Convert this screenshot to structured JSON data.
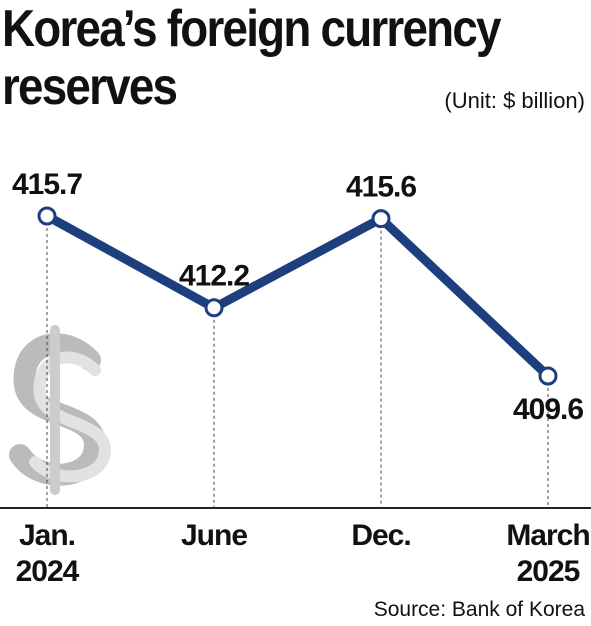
{
  "chart_data": {
    "type": "line",
    "title": "Korea’s foreign currency reserves",
    "subtitle": "(Unit: $ billion)",
    "source": "Source: Bank of Korea",
    "categories": [
      "Jan. 2024",
      "June",
      "Dec.",
      "March 2025"
    ],
    "series": [
      {
        "name": "Reserves",
        "color": "#1d3f7e",
        "values": [
          415.7,
          412.2,
          415.6,
          409.6
        ]
      }
    ]
  }
}
